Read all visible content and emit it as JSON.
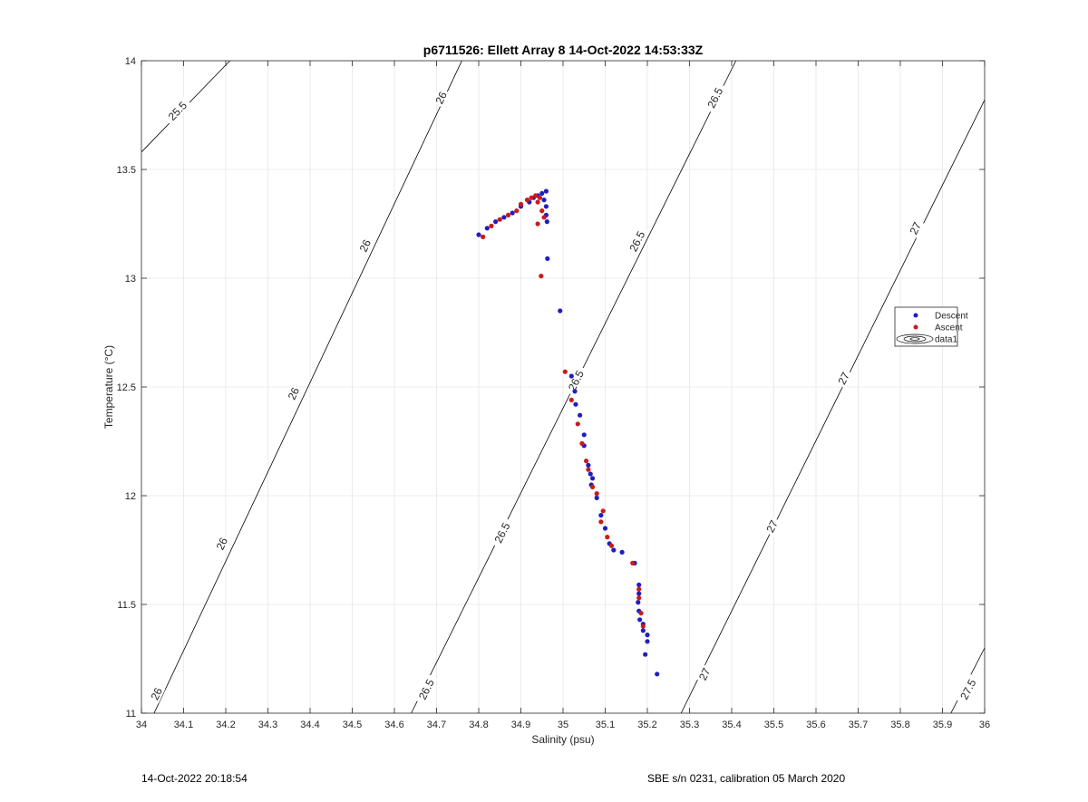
{
  "footer": {
    "left": "14-Oct-2022 20:18:54",
    "right": "SBE s/n 0231, calibration 05 March 2020"
  },
  "colors": {
    "descent": "#1f1fbf",
    "ascent": "#cc1a1a",
    "grid": "#e6e6e6",
    "contour": "#000000"
  },
  "chart_data": {
    "type": "scatter",
    "title": "p6711526: Ellett Array 8 14-Oct-2022 14:53:33Z",
    "xlabel": "Salinity (psu)",
    "ylabel": "Temperature (°C)",
    "xlim": [
      34,
      36
    ],
    "ylim": [
      11,
      14
    ],
    "xticks": [
      34,
      34.1,
      34.2,
      34.3,
      34.4,
      34.5,
      34.6,
      34.7,
      34.8,
      34.9,
      35,
      35.1,
      35.2,
      35.3,
      35.4,
      35.5,
      35.6,
      35.7,
      35.8,
      35.9,
      36
    ],
    "xtick_labels": [
      "34",
      "34.1",
      "34.2",
      "34.3",
      "34.4",
      "34.5",
      "34.6",
      "34.7",
      "34.8",
      "34.9",
      "35",
      "35.1",
      "35.2",
      "35.3",
      "35.4",
      "35.5",
      "35.6",
      "35.7",
      "35.8",
      "35.9",
      "36"
    ],
    "yticks": [
      11,
      11.5,
      12,
      12.5,
      13,
      13.5,
      14
    ],
    "ytick_labels": [
      "11",
      "11.5",
      "12",
      "12.5",
      "13",
      "13.5",
      "14"
    ],
    "grid": true,
    "legend_position": "right",
    "series": [
      {
        "name": "Descent",
        "points": [
          [
            34.8,
            13.2
          ],
          [
            34.82,
            13.23
          ],
          [
            34.84,
            13.26
          ],
          [
            34.86,
            13.28
          ],
          [
            34.88,
            13.3
          ],
          [
            34.9,
            13.33
          ],
          [
            34.92,
            13.35
          ],
          [
            34.93,
            13.37
          ],
          [
            34.94,
            13.38
          ],
          [
            34.95,
            13.39
          ],
          [
            34.96,
            13.4
          ],
          [
            34.955,
            13.36
          ],
          [
            34.96,
            13.33
          ],
          [
            34.96,
            13.29
          ],
          [
            34.962,
            13.26
          ],
          [
            34.963,
            13.09
          ],
          [
            34.993,
            12.85
          ],
          [
            35.02,
            12.55
          ],
          [
            35.028,
            12.48
          ],
          [
            35.03,
            12.42
          ],
          [
            35.04,
            12.37
          ],
          [
            35.05,
            12.28
          ],
          [
            35.05,
            12.23
          ],
          [
            35.06,
            12.14
          ],
          [
            35.065,
            12.1
          ],
          [
            35.067,
            12.05
          ],
          [
            35.07,
            12.08
          ],
          [
            35.08,
            11.99
          ],
          [
            35.09,
            11.91
          ],
          [
            35.1,
            11.85
          ],
          [
            35.11,
            11.78
          ],
          [
            35.12,
            11.75
          ],
          [
            35.14,
            11.74
          ],
          [
            35.17,
            11.69
          ],
          [
            35.18,
            11.59
          ],
          [
            35.18,
            11.55
          ],
          [
            35.178,
            11.51
          ],
          [
            35.18,
            11.47
          ],
          [
            35.182,
            11.43
          ],
          [
            35.19,
            11.41
          ],
          [
            35.19,
            11.38
          ],
          [
            35.2,
            11.36
          ],
          [
            35.2,
            11.33
          ],
          [
            35.195,
            11.27
          ],
          [
            35.223,
            11.18
          ]
        ]
      },
      {
        "name": "Ascent",
        "points": [
          [
            34.81,
            13.19
          ],
          [
            34.83,
            13.24
          ],
          [
            34.85,
            13.27
          ],
          [
            34.87,
            13.29
          ],
          [
            34.89,
            13.31
          ],
          [
            34.9,
            13.34
          ],
          [
            34.915,
            13.36
          ],
          [
            34.925,
            13.37
          ],
          [
            34.935,
            13.38
          ],
          [
            34.945,
            13.37
          ],
          [
            34.94,
            13.35
          ],
          [
            34.95,
            13.31
          ],
          [
            34.955,
            13.28
          ],
          [
            34.94,
            13.25
          ],
          [
            34.948,
            13.01
          ],
          [
            35.005,
            12.57
          ],
          [
            35.02,
            12.44
          ],
          [
            35.035,
            12.33
          ],
          [
            35.045,
            12.24
          ],
          [
            35.055,
            12.16
          ],
          [
            35.06,
            12.12
          ],
          [
            35.07,
            12.04
          ],
          [
            35.08,
            12.01
          ],
          [
            35.095,
            11.93
          ],
          [
            35.09,
            11.88
          ],
          [
            35.105,
            11.81
          ],
          [
            35.115,
            11.77
          ],
          [
            35.165,
            11.69
          ],
          [
            35.18,
            11.57
          ],
          [
            35.18,
            11.53
          ],
          [
            35.185,
            11.46
          ],
          [
            35.19,
            11.4
          ]
        ]
      },
      {
        "name": "data1",
        "type": "contour",
        "levels": [
          {
            "sigma": 25.5,
            "segments": [
              {
                "s0": 34.0,
                "t0": 13.58,
                "s1": 34.21,
                "t1": 14.0
              }
            ]
          },
          {
            "sigma": 26,
            "segments": [
              {
                "s0": 34.03,
                "t0": 11.0,
                "s1": 34.76,
                "t1": 14.0
              }
            ]
          },
          {
            "sigma": 26.5,
            "segments": [
              {
                "s0": 34.64,
                "t0": 11.0,
                "s1": 35.41,
                "t1": 14.0
              }
            ]
          },
          {
            "sigma": 27,
            "segments": [
              {
                "s0": 35.28,
                "t0": 11.0,
                "s1": 36.0,
                "t1": 13.82
              }
            ]
          },
          {
            "sigma": 27.5,
            "segments": [
              {
                "s0": 35.92,
                "t0": 11.0,
                "s1": 36.0,
                "t1": 11.3
              }
            ]
          }
        ]
      }
    ],
    "contour_labels": [
      {
        "text": "25.5",
        "s": 34.085,
        "t": 13.77
      },
      {
        "text": "26",
        "s": 34.035,
        "t": 11.09
      },
      {
        "text": "26",
        "s": 34.19,
        "t": 11.78
      },
      {
        "text": "26",
        "s": 34.36,
        "t": 12.47
      },
      {
        "text": "26",
        "s": 34.53,
        "t": 13.15
      },
      {
        "text": "26",
        "s": 34.71,
        "t": 13.83
      },
      {
        "text": "26.5",
        "s": 34.675,
        "t": 11.11
      },
      {
        "text": "26.5",
        "s": 34.855,
        "t": 11.83
      },
      {
        "text": "26.5",
        "s": 35.03,
        "t": 12.53
      },
      {
        "text": "26.5",
        "s": 35.175,
        "t": 13.17
      },
      {
        "text": "26.5",
        "s": 35.36,
        "t": 13.83
      },
      {
        "text": "27",
        "s": 35.335,
        "t": 11.18
      },
      {
        "text": "27",
        "s": 35.495,
        "t": 11.86
      },
      {
        "text": "27",
        "s": 35.665,
        "t": 12.54
      },
      {
        "text": "27",
        "s": 35.835,
        "t": 13.23
      },
      {
        "text": "27.5",
        "s": 35.96,
        "t": 11.11
      }
    ]
  }
}
